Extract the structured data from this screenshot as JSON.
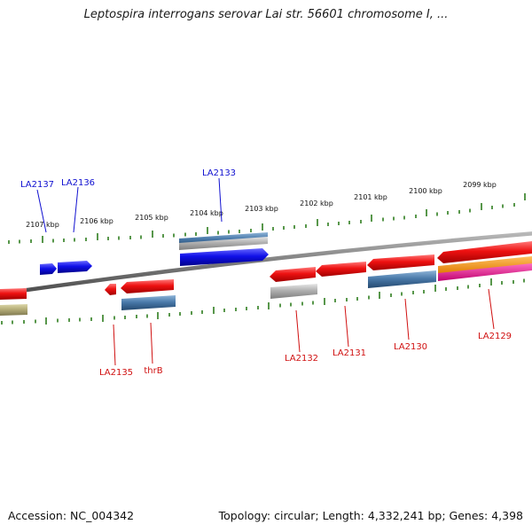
{
  "title": "Leptospira interrogans serovar Lai str. 56601 chromosome I, ...",
  "footer": {
    "accession": "Accession: NC_004342",
    "topology": "Topology: circular; Length: 4,332,241 bp; Genes: 4,398"
  },
  "colors": {
    "backbone": "#808080",
    "scale_ticks": "#2e7d1e",
    "forward_label": "#1010d0",
    "reverse_label": "#d01010",
    "gene_blue": "#1010e8",
    "gene_red": "#ee1111",
    "gene_steel": "#4a7aaa",
    "gene_gray": "#b0b0b0",
    "gene_olive": "#b5ad78",
    "gene_orange": "#f28c00",
    "gene_magenta": "#ec1c8c"
  },
  "scale_labels": [
    "2107 kbp",
    "2106 kbp",
    "2105 kbp",
    "2104 kbp",
    "2103 kbp",
    "2102 kbp",
    "2101 kbp",
    "2100 kbp",
    "2099 kbp"
  ],
  "forward_gene_labels": [
    "LA2137",
    "LA2136",
    "LA2133"
  ],
  "reverse_gene_labels": [
    "LA2135",
    "thrB",
    "LA2132",
    "LA2131",
    "LA2130",
    "LA2129"
  ]
}
